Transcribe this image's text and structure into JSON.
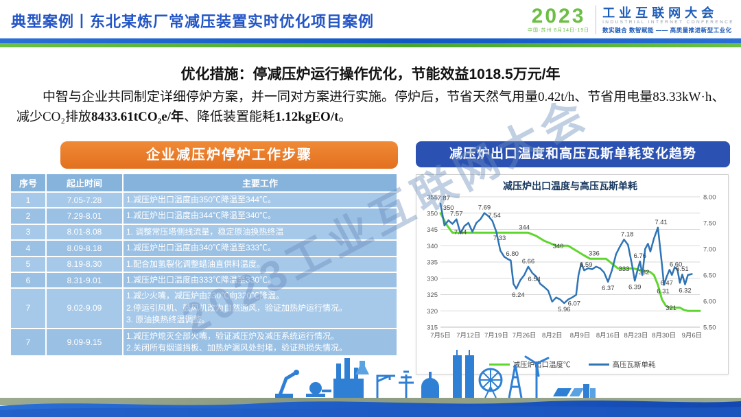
{
  "header": {
    "title": "典型案例丨东北某炼厂常减压装置实时优化项目案例",
    "logo": {
      "year": "2023",
      "venue": "中国·苏州 8月14日-19日",
      "name_cn": "工业互联网大会",
      "name_en": "INDUSTRIAL INTERNET CONFERENCE",
      "slogan": "数实融合 数智赋能 —— 高质量推进新型工业化"
    }
  },
  "subtitle": "优化措施：停减压炉运行操作优化，节能效益1018.5万元/年",
  "paragraph": {
    "runs": [
      "中智与企业共同制定详细停炉方案，并一同对方案进行实施。停炉后，节省天然气用量0.42t/h、节省用电量83.33kW·h、减少CO₂排放",
      "8433.61tCO₂e/年",
      "、降低装置能耗",
      "1.12kgEO/t",
      "。"
    ]
  },
  "left_panel": {
    "header": "企业减压炉停炉工作步骤"
  },
  "table": {
    "columns": [
      "序号",
      "起止时间",
      "主要工作"
    ],
    "rows": [
      {
        "no": "1",
        "time": "7.05-7.28",
        "works": [
          "1.减压炉出口温度由350℃降温至344℃。"
        ]
      },
      {
        "no": "2",
        "time": "7.29-8.01",
        "works": [
          "1.减压炉出口温度由344℃降温至340℃。"
        ]
      },
      {
        "no": "3",
        "time": "8.01-8.08",
        "works": [
          "1. 调整常压塔侧线流量，稳定原油换热终温"
        ]
      },
      {
        "no": "4",
        "time": "8.09-8.18",
        "works": [
          "1.减压炉出口温度由340℃降温至333℃。"
        ]
      },
      {
        "no": "5",
        "time": "8.19-8.30",
        "works": [
          "1.配合加氢裂化调整蜡油直供料温度。"
        ]
      },
      {
        "no": "6",
        "time": "8.31-9.01",
        "works": [
          "1.减压炉出口温度由333℃降温至330℃。"
        ]
      },
      {
        "no": "7",
        "time": "9.02-9.09",
        "works": [
          "1.减少火嘴，减压炉由330℃向320℃降温。",
          "2.停运引风机、鼓风机改为自然通风，验证加热炉运行情况。",
          "3. 原油换热终温调整。"
        ]
      },
      {
        "no": "7",
        "time": "9.09-9.15",
        "works": [
          "1.减压炉熄灭全部火嘴，验证减压炉及减压系统运行情况。",
          "2.关闭所有烟道挡板、加热炉漏风处封堵，验证热损失情况。"
        ]
      }
    ]
  },
  "right_panel": {
    "header": "减压炉出口温度和高压瓦斯单耗变化趋势"
  },
  "chart_data": {
    "type": "line",
    "title": "减压炉出口温度与高压瓦斯单耗",
    "grid": true,
    "legend_position": "bottom",
    "x_range": [
      0,
      65
    ],
    "x_ticks": [
      [
        0,
        "7月5日"
      ],
      [
        7,
        "7月12日"
      ],
      [
        14,
        "7月19日"
      ],
      [
        21,
        "7月26日"
      ],
      [
        28,
        "8月2日"
      ],
      [
        35,
        "8月9日"
      ],
      [
        42,
        "8月16日"
      ],
      [
        49,
        "8月23日"
      ],
      [
        56,
        "8月30日"
      ],
      [
        63,
        "9月6日"
      ]
    ],
    "left_axis": {
      "range": [
        315,
        355
      ],
      "ticks": [
        355,
        350,
        345,
        340,
        335,
        330,
        325,
        320,
        315
      ]
    },
    "right_axis": {
      "range": [
        5.5,
        8.0
      ],
      "ticks": [
        "8.00",
        "7.50",
        "7.00",
        "6.50",
        "6.00",
        "5.50"
      ]
    },
    "series": [
      {
        "name": "减压炉出口温度℃",
        "axis": "left",
        "color": "#5ED62E",
        "width": 3,
        "points": [
          [
            0,
            350
          ],
          [
            1.5,
            346.5
          ],
          [
            3,
            344
          ],
          [
            22,
            344
          ],
          [
            24,
            343
          ],
          [
            26,
            341.5
          ],
          [
            28,
            340.5
          ],
          [
            29,
            340
          ],
          [
            32,
            340
          ],
          [
            34,
            338.5
          ],
          [
            36,
            337
          ],
          [
            37.5,
            336
          ],
          [
            41.5,
            336
          ],
          [
            43,
            334.5
          ],
          [
            44.5,
            333
          ],
          [
            48.5,
            333
          ],
          [
            50,
            332.5
          ],
          [
            52.5,
            332
          ],
          [
            53.5,
            331
          ],
          [
            54.5,
            328
          ],
          [
            55.5,
            323.5
          ],
          [
            56.5,
            321.5
          ],
          [
            57.5,
            321
          ],
          [
            60,
            321
          ],
          [
            61,
            320.3
          ],
          [
            62,
            320
          ],
          [
            65,
            320
          ]
        ],
        "labels": [
          [
            2,
            350,
            "350",
            "a"
          ],
          [
            21,
            344,
            "344",
            "a"
          ],
          [
            29.5,
            340,
            "340",
            "m"
          ],
          [
            38.5,
            336,
            "336",
            "a"
          ],
          [
            46,
            333,
            "333",
            "m"
          ],
          [
            51,
            332,
            "332",
            "m"
          ],
          [
            57.8,
            321,
            "321",
            "m"
          ]
        ]
      },
      {
        "name": "高压瓦斯单耗",
        "axis": "right",
        "color": "#2E74B5",
        "width": 2.5,
        "points": [
          [
            0,
            7.87
          ],
          [
            1,
            7.45
          ],
          [
            2,
            7.55
          ],
          [
            3,
            7.48
          ],
          [
            4,
            7.57
          ],
          [
            5,
            7.3
          ],
          [
            6,
            7.44
          ],
          [
            7,
            7.5
          ],
          [
            8,
            7.33
          ],
          [
            9,
            7.5
          ],
          [
            10,
            7.57
          ],
          [
            11,
            7.69
          ],
          [
            12,
            7.63
          ],
          [
            13,
            7.54
          ],
          [
            14,
            7.33
          ],
          [
            15,
            6.97
          ],
          [
            16,
            6.85
          ],
          [
            17,
            6.8
          ],
          [
            17.6,
            6.78
          ],
          [
            18.3,
            6.33
          ],
          [
            19,
            6.24
          ],
          [
            20,
            6.4
          ],
          [
            21,
            6.5
          ],
          [
            22,
            6.66
          ],
          [
            23,
            6.54
          ],
          [
            24,
            6.47
          ],
          [
            25,
            6.33
          ],
          [
            26,
            6.27
          ],
          [
            27,
            6.2
          ],
          [
            28,
            5.99
          ],
          [
            29,
            6.07
          ],
          [
            30,
            6.03
          ],
          [
            31,
            5.96
          ],
          [
            32,
            6.03
          ],
          [
            33,
            6.07
          ],
          [
            34,
            6.12
          ],
          [
            34.6,
            6.5
          ],
          [
            35.3,
            6.73
          ],
          [
            36,
            6.59
          ],
          [
            37,
            6.63
          ],
          [
            38,
            6.61
          ],
          [
            39,
            6.66
          ],
          [
            40,
            6.63
          ],
          [
            41,
            6.55
          ],
          [
            42,
            6.37
          ],
          [
            43,
            6.6
          ],
          [
            44,
            6.9
          ],
          [
            45,
            7.05
          ],
          [
            46,
            7.18
          ],
          [
            47,
            7.08
          ],
          [
            48,
            6.7
          ],
          [
            48.7,
            6.39
          ],
          [
            49.4,
            6.6
          ],
          [
            50,
            6.76
          ],
          [
            50.6,
            6.5
          ],
          [
            51.3,
            7.0
          ],
          [
            52,
            7.1
          ],
          [
            52.6,
            6.95
          ],
          [
            53.5,
            7.2
          ],
          [
            54.5,
            7.41
          ],
          [
            55.5,
            6.7
          ],
          [
            56,
            6.31
          ],
          [
            56.7,
            6.47
          ],
          [
            57.4,
            6.6
          ],
          [
            58,
            6.5
          ],
          [
            58.7,
            6.65
          ],
          [
            59.4,
            6.6
          ],
          [
            60,
            6.35
          ],
          [
            60.6,
            6.51
          ],
          [
            61.3,
            6.32
          ],
          [
            62,
            6.5
          ],
          [
            63,
            6.52
          ]
        ],
        "labels": [
          [
            0.8,
            7.87,
            "7.87",
            "a"
          ],
          [
            4,
            7.57,
            "7.57",
            "a"
          ],
          [
            5,
            7.44,
            "7.44",
            "b"
          ],
          [
            11,
            7.69,
            "7.69",
            "a"
          ],
          [
            13.5,
            7.54,
            "7.54",
            "a"
          ],
          [
            14.8,
            7.33,
            "7.33",
            "b"
          ],
          [
            18,
            6.8,
            "6.80",
            "a"
          ],
          [
            19.5,
            6.24,
            "6.24",
            "b"
          ],
          [
            22,
            6.66,
            "6.66",
            "a"
          ],
          [
            23.5,
            6.54,
            "6.54",
            "b"
          ],
          [
            31,
            5.96,
            "5.96",
            "b"
          ],
          [
            33.5,
            6.07,
            "6.07",
            "b"
          ],
          [
            36.5,
            6.59,
            "6.59",
            "a"
          ],
          [
            42,
            6.37,
            "6.37",
            "b"
          ],
          [
            46.8,
            7.18,
            "7.18",
            "a"
          ],
          [
            48.7,
            6.39,
            "6.39",
            "b"
          ],
          [
            50,
            6.76,
            "6.76",
            "a"
          ],
          [
            55.3,
            7.41,
            "7.41",
            "a"
          ],
          [
            55.8,
            6.31,
            "6.31",
            "b"
          ],
          [
            56.7,
            6.47,
            "6.47",
            "b"
          ],
          [
            59,
            6.6,
            "6.60",
            "a"
          ],
          [
            60.6,
            6.51,
            "6.51",
            "a"
          ],
          [
            61.3,
            6.32,
            "6.32",
            "b"
          ]
        ]
      }
    ]
  },
  "watermark": {
    "text": "2023工业互联网大会"
  },
  "colors": {
    "accent_blue": "#2B51B2",
    "accent_orange": "#E2701F",
    "line_green": "#5ED62E",
    "line_blue": "#2E74B5"
  }
}
